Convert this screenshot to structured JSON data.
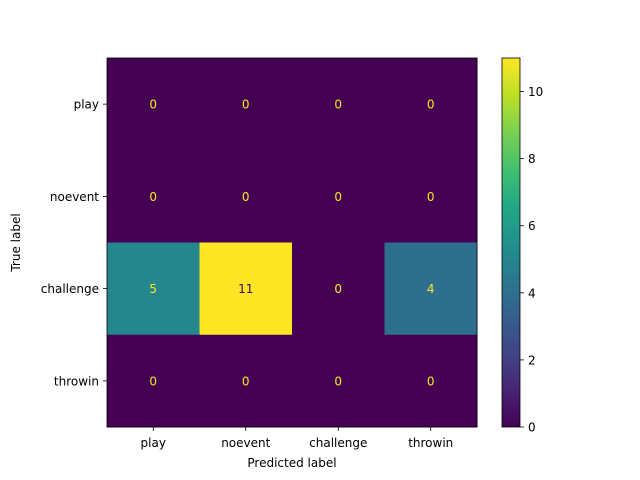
{
  "chart_data": {
    "type": "heatmap",
    "title": "",
    "xlabel": "Predicted label",
    "ylabel": "True label",
    "x_categories": [
      "play",
      "noevent",
      "challenge",
      "throwin"
    ],
    "y_categories": [
      "play",
      "noevent",
      "challenge",
      "throwin"
    ],
    "values": [
      [
        0,
        0,
        0,
        0
      ],
      [
        0,
        0,
        0,
        0
      ],
      [
        5,
        11,
        0,
        4
      ],
      [
        0,
        0,
        0,
        0
      ]
    ],
    "colormap": "viridis",
    "colorbar": {
      "min": 0,
      "max": 11,
      "ticks": [
        "0",
        "2",
        "4",
        "6",
        "8",
        "10"
      ]
    },
    "text_colors": {
      "on_dark": "#fde725",
      "on_light": "#440154"
    }
  }
}
